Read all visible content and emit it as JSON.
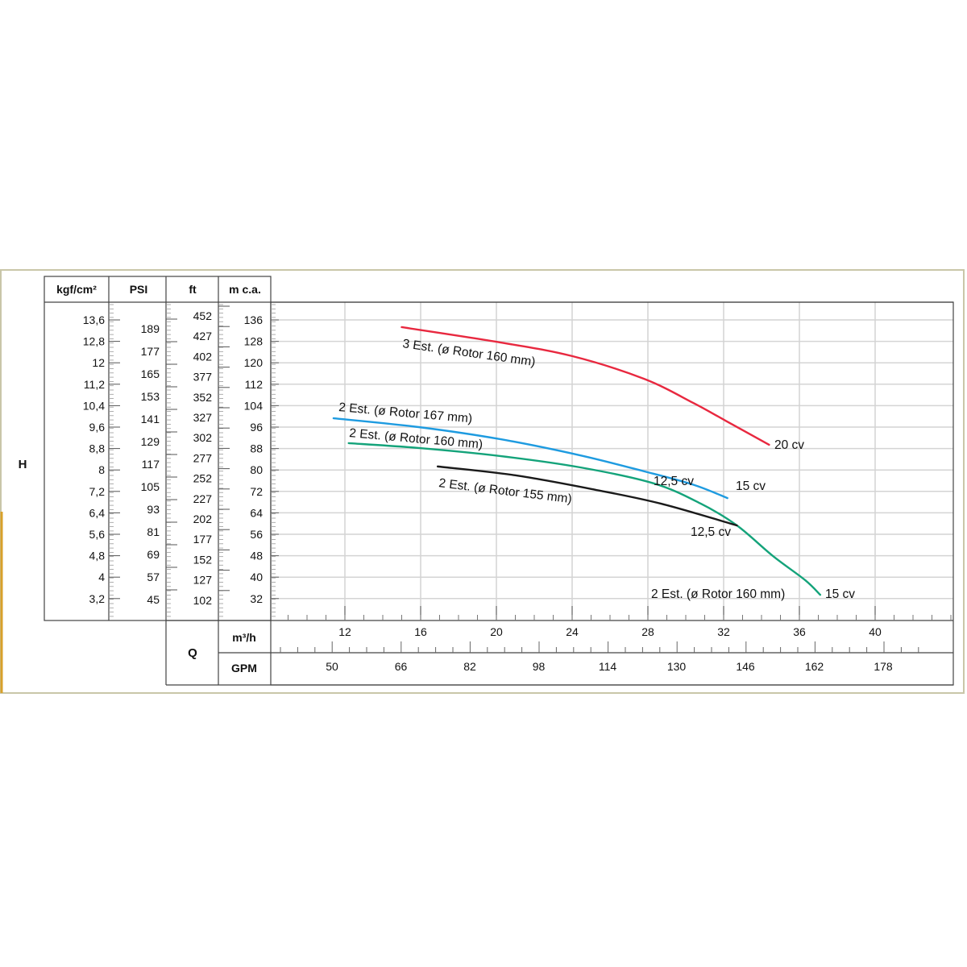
{
  "chart_data": {
    "type": "line",
    "title": "",
    "ylabel": "H",
    "xlabel": "Q",
    "grid": true,
    "x_unit": "m³/h",
    "y_unit": "m c.a.",
    "xlim": [
      8,
      44
    ],
    "ylim": [
      24,
      142
    ],
    "x_ticks": [
      12,
      16,
      20,
      24,
      28,
      32,
      36,
      40
    ],
    "y_ticks": [
      136,
      128,
      120,
      112,
      104,
      96,
      88,
      80,
      72,
      64,
      56,
      48,
      40,
      32
    ],
    "secondary_x_axis": {
      "unit": "GPM",
      "ticks": [
        "50",
        "66",
        "82",
        "98",
        "114",
        "130",
        "146",
        "162",
        "178"
      ]
    },
    "secondary_y_axes": [
      {
        "unit": "kgf/cm²",
        "ticks": [
          "13,6",
          "12,8",
          "12",
          "11,2",
          "10,4",
          "9,6",
          "8,8",
          "8",
          "7,2",
          "6,4",
          "5,6",
          "4,8",
          "4",
          "3,2"
        ]
      },
      {
        "unit": "PSI",
        "ticks": [
          "189",
          "177",
          "165",
          "153",
          "141",
          "129",
          "117",
          "105",
          "93",
          "81",
          "69",
          "57",
          "45"
        ]
      },
      {
        "unit": "ft",
        "ticks": [
          "452",
          "427",
          "402",
          "377",
          "352",
          "327",
          "302",
          "277",
          "252",
          "227",
          "202",
          "177",
          "152",
          "127",
          "102"
        ]
      }
    ],
    "series": [
      {
        "name": "3 Est. (ø Rotor 160 mm)",
        "power": "20 cv",
        "color": "#e8283f",
        "x": [
          15.0,
          20.2,
          24.0,
          27.8,
          30.4,
          32.1,
          34.4
        ],
        "y": [
          133.3,
          127.6,
          122.5,
          114,
          105,
          98.4,
          89.4
        ]
      },
      {
        "name": "2 Est. (ø Rotor 167 mm)",
        "power": "15 cv",
        "color": "#1e9be0",
        "x": [
          11.4,
          15.9,
          20.2,
          24.4,
          27.8,
          30.4,
          32.2
        ],
        "y": [
          99.3,
          96,
          91.5,
          85.5,
          79.5,
          74.5,
          69.5
        ]
      },
      {
        "name": "2 Est. (ø Rotor 160 mm)",
        "power": "12,5 cv",
        "power_end": "15 cv",
        "end_label": "2 Est. (ø Rotor 160 mm)",
        "color": "#14a37a",
        "x": [
          12.2,
          15.9,
          20.2,
          24.4,
          28.3,
          30.8,
          32.7,
          34.6,
          36.3,
          37.1
        ],
        "y": [
          90,
          88.2,
          85.2,
          81,
          75,
          67.4,
          59.3,
          47.9,
          38.9,
          33.4
        ]
      },
      {
        "name": "2 Est. (ø Rotor 155 mm)",
        "power": "12,5 cv",
        "color": "#1a1a1a",
        "x": [
          16.9,
          21.0,
          25.3,
          28.7,
          32.7
        ],
        "y": [
          81.3,
          78,
          72.5,
          67.4,
          59.3
        ]
      }
    ]
  },
  "labels": {
    "kgf": "kgf/cm²",
    "psi": "PSI",
    "ft": "ft",
    "mca": "m c.a.",
    "h": "H",
    "q": "Q",
    "m3h": "m³/h",
    "gpm": "GPM",
    "red_name": "3 Est. (ø Rotor 160 mm)",
    "red_power": "20 cv",
    "blue_name": "2 Est. (ø Rotor 167 mm)",
    "blue_power": "15 cv",
    "green_name": "2 Est. (ø Rotor 160 mm)",
    "green_power": "12,5 cv",
    "green_end_name": "2 Est. (ø Rotor 160 mm)",
    "green_end_power": "15 cv",
    "black_name": "2 Est. (ø Rotor 155 mm)",
    "black_power": "12,5 cv"
  }
}
